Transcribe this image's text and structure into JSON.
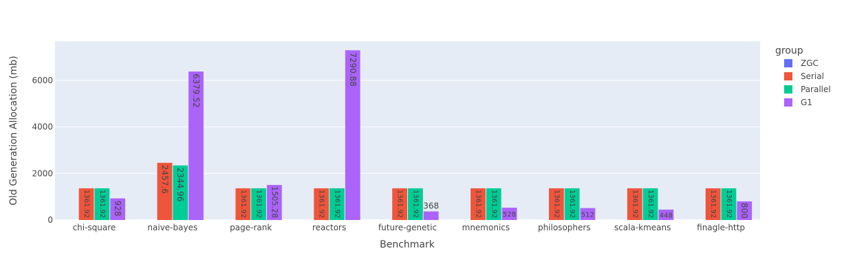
{
  "chart_data": {
    "type": "bar",
    "title": "",
    "xlabel": "Benchmark",
    "ylabel": "Old Generation Allocation (mb)",
    "ylim": [
      0,
      7680
    ],
    "yticks": [
      0,
      2000,
      4000,
      6000
    ],
    "ytick_labels": [
      "0",
      "2000",
      "4000",
      "6000"
    ],
    "grid": true,
    "legend_title": "group",
    "legend_position": "top-right",
    "categories": [
      "chi-square",
      "naive-bayes",
      "page-rank",
      "reactors",
      "future-genetic",
      "mnemonics",
      "philosophers",
      "scala-kmeans",
      "finagle-http"
    ],
    "series": [
      {
        "name": "ZGC",
        "color": "#636efa",
        "values": [
          0,
          0,
          0,
          0,
          0,
          0,
          0,
          0,
          0
        ],
        "labels": [
          "",
          "",
          "",
          "",
          "",
          "",
          "",
          "",
          ""
        ]
      },
      {
        "name": "Serial",
        "color": "#ef553b",
        "values": [
          1361.92,
          2457.6,
          1361.92,
          1361.92,
          1361.92,
          1361.92,
          1361.92,
          1361.92,
          1361.92
        ],
        "labels": [
          "1361.92",
          "2457.6",
          "1361.92",
          "1361.92",
          "1361.92",
          "1361.92",
          "1361.92",
          "1361.92",
          "1361.92"
        ]
      },
      {
        "name": "Parallel",
        "color": "#00cc96",
        "values": [
          1361.92,
          2344.96,
          1361.92,
          1361.92,
          1361.92,
          1361.92,
          1361.92,
          1361.92,
          1361.92
        ],
        "labels": [
          "1361.92",
          "2344.96",
          "1361.92",
          "1361.92",
          "1361.92",
          "1361.92",
          "1361.92",
          "1361.92",
          "1361.92"
        ]
      },
      {
        "name": "G1",
        "color": "#ab63fa",
        "values": [
          928,
          6379.52,
          1505.28,
          7290.88,
          368,
          528,
          512,
          448,
          800
        ],
        "labels": [
          "928",
          "6379.52",
          "1505.28",
          "7290.88",
          "368",
          "528",
          "512",
          "448",
          "800"
        ]
      }
    ]
  },
  "style": {
    "plot_bg": "#e5ecf6",
    "paper_bg": "#ffffff",
    "grid_color": "#ffffff",
    "text_color": "#444444"
  }
}
